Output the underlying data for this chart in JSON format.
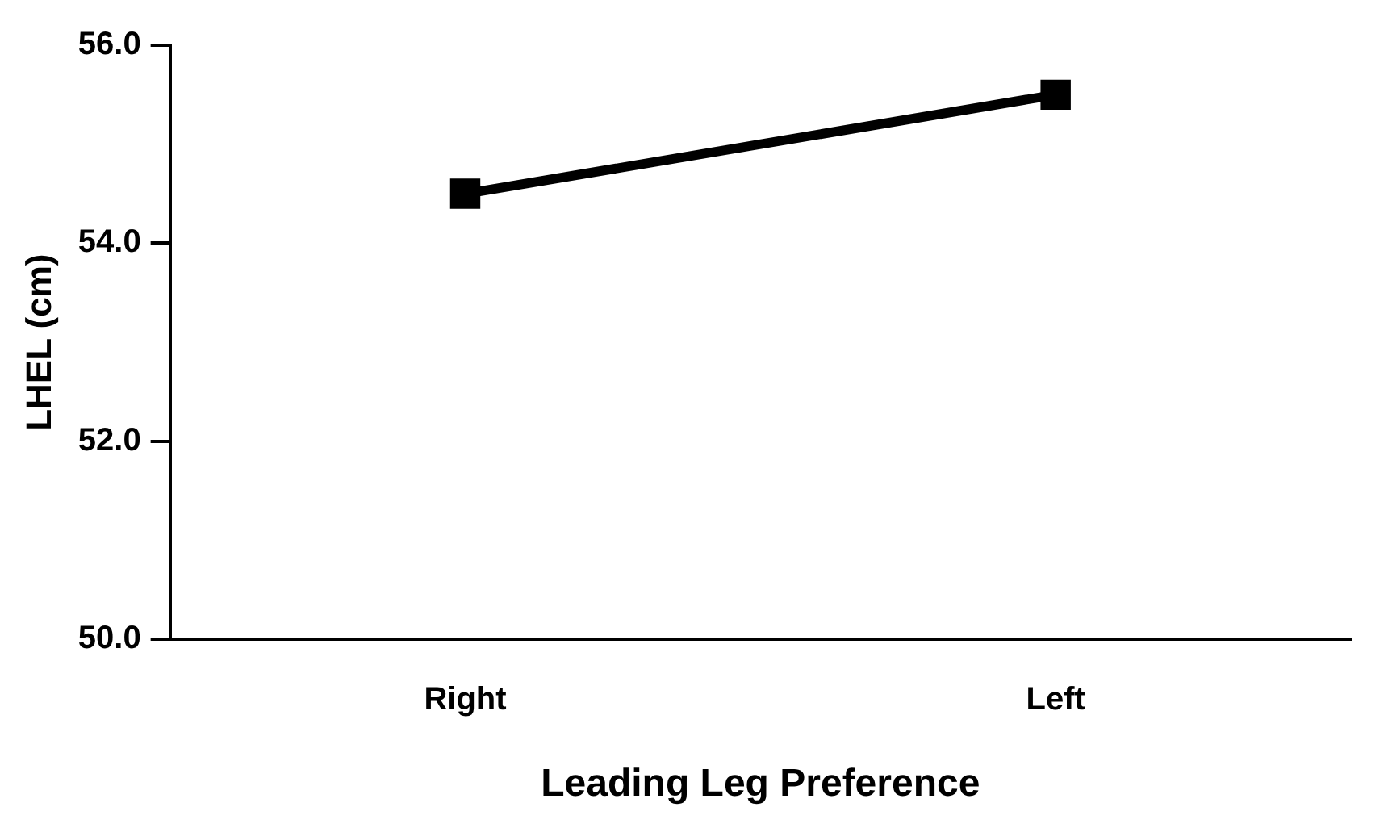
{
  "chart_data": {
    "type": "line",
    "xlabel": "Leading Leg Preference",
    "ylabel": "LHEL (cm)",
    "categories": [
      "Right",
      "Left"
    ],
    "series": [
      {
        "color": "#000000",
        "values": [
          54.5,
          55.5
        ]
      }
    ],
    "ylim": [
      50,
      56
    ],
    "yticks": [
      {
        "value": 50,
        "label": "50.0"
      },
      {
        "value": 52,
        "label": "52.0"
      },
      {
        "value": 54,
        "label": "54.0"
      },
      {
        "value": 56,
        "label": "56.0"
      }
    ],
    "grid": false,
    "legend": false,
    "marker": "square",
    "line_style": "solid"
  }
}
